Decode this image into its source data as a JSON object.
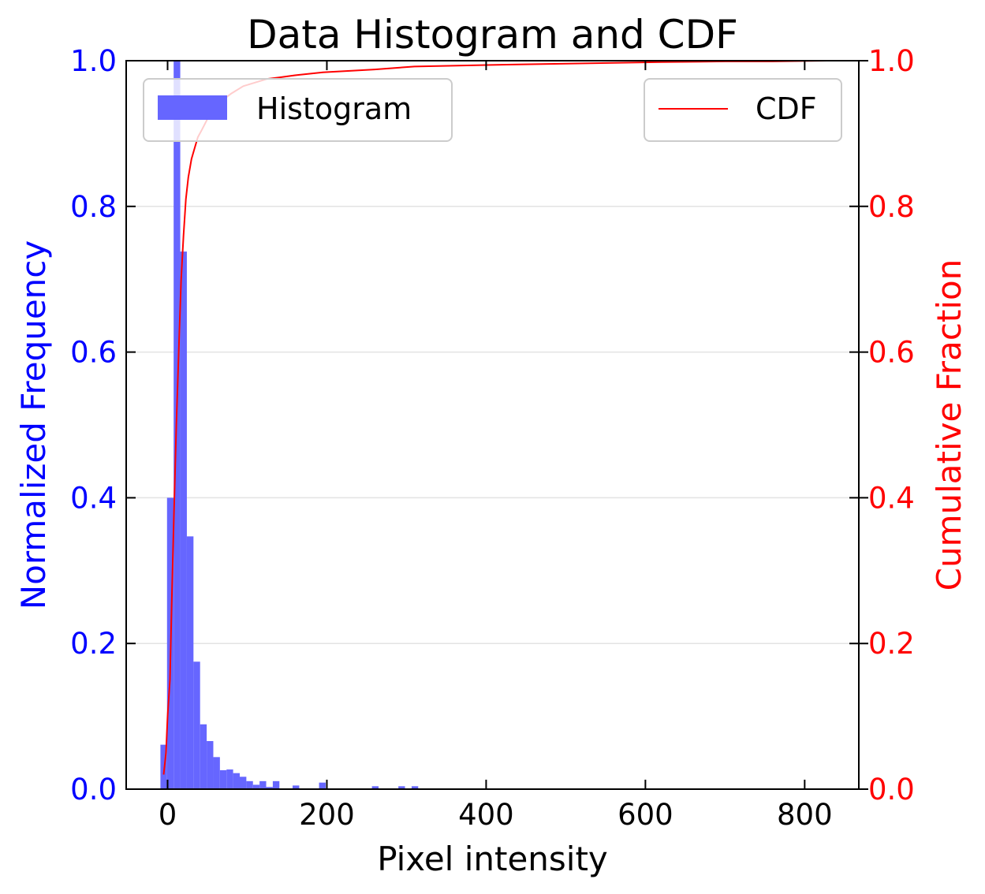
{
  "chart_data": {
    "type": "bar",
    "title": "Data Histogram and CDF",
    "xlabel": "Pixel intensity",
    "ylabel": "Normalized Frequency",
    "y2label": "Cumulative Fraction",
    "xlim": [
      -52,
      868
    ],
    "ylim": [
      0,
      1.0
    ],
    "y2lim": [
      0,
      1.0
    ],
    "xticks": [
      0,
      200,
      400,
      600,
      800
    ],
    "yticks": [
      0.0,
      0.2,
      0.4,
      0.6,
      0.8,
      1.0
    ],
    "y2ticks": [
      0.0,
      0.2,
      0.4,
      0.6,
      0.8,
      1.0
    ],
    "grid": "horizontal",
    "colors": {
      "histogram": "#6666ff",
      "cdf": "#ff0000",
      "left_axis": "#0000ff",
      "right_axis": "#ff0000"
    },
    "legends": [
      {
        "label": "Histogram",
        "placement": "upper-left"
      },
      {
        "label": "CDF",
        "placement": "upper-right"
      }
    ],
    "series": [
      {
        "name": "Histogram",
        "type": "bar",
        "bin_width": 8.3,
        "bins": [
          {
            "x": -9,
            "y": 0.061
          },
          {
            "x": -0.7,
            "y": 0.4
          },
          {
            "x": 7.6,
            "y": 1.0
          },
          {
            "x": 15.9,
            "y": 0.738
          },
          {
            "x": 24.2,
            "y": 0.347
          },
          {
            "x": 32.5,
            "y": 0.175
          },
          {
            "x": 40.8,
            "y": 0.089
          },
          {
            "x": 49.1,
            "y": 0.066
          },
          {
            "x": 57.4,
            "y": 0.044
          },
          {
            "x": 65.7,
            "y": 0.026
          },
          {
            "x": 74.0,
            "y": 0.027
          },
          {
            "x": 82.3,
            "y": 0.022
          },
          {
            "x": 90.6,
            "y": 0.017
          },
          {
            "x": 98.9,
            "y": 0.011
          },
          {
            "x": 107.2,
            "y": 0.006
          },
          {
            "x": 115.5,
            "y": 0.011
          },
          {
            "x": 123.8,
            "y": 0.003
          },
          {
            "x": 132.1,
            "y": 0.011
          },
          {
            "x": 157.0,
            "y": 0.005
          },
          {
            "x": 190.2,
            "y": 0.009
          },
          {
            "x": 256.6,
            "y": 0.004
          },
          {
            "x": 289.8,
            "y": 0.004
          },
          {
            "x": 306.4,
            "y": 0.004
          },
          {
            "x": 547.1,
            "y": 0.001
          },
          {
            "x": 563.7,
            "y": 0.001
          },
          {
            "x": 688.2,
            "y": 0.001
          }
        ]
      },
      {
        "name": "CDF",
        "type": "line",
        "x": [
          -5,
          -2,
          0,
          3,
          5,
          8,
          11,
          14,
          17,
          20,
          23,
          26,
          30,
          34,
          38,
          43,
          50,
          58,
          68,
          80,
          95,
          110,
          125,
          140,
          160,
          195,
          260,
          310,
          400,
          500,
          560,
          620,
          700,
          760,
          828
        ],
        "y": [
          0.02,
          0.05,
          0.1,
          0.15,
          0.25,
          0.38,
          0.5,
          0.6,
          0.7,
          0.76,
          0.81,
          0.84,
          0.865,
          0.88,
          0.895,
          0.905,
          0.92,
          0.935,
          0.945,
          0.955,
          0.965,
          0.97,
          0.975,
          0.977,
          0.98,
          0.984,
          0.988,
          0.992,
          0.994,
          0.996,
          0.997,
          0.998,
          0.999,
          0.999,
          1.0
        ]
      }
    ]
  }
}
